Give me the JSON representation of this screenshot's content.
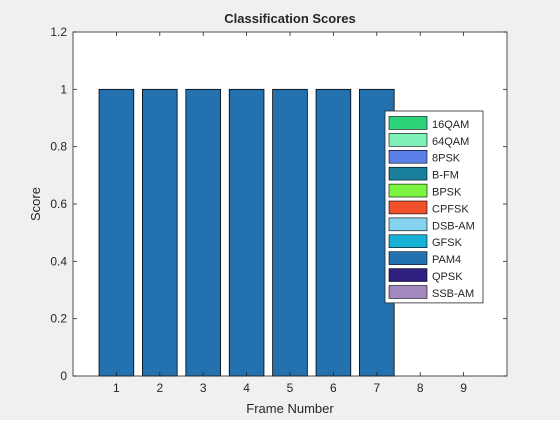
{
  "figure": {
    "background": "#f0f0f0",
    "axes_background": "#ffffff"
  },
  "chart_data": {
    "type": "bar",
    "title": "Classification Scores",
    "xlabel": "Frame Number",
    "ylabel": "Score",
    "categories": [
      "1",
      "2",
      "3",
      "4",
      "5",
      "6",
      "7",
      "8",
      "9"
    ],
    "xlim": [
      0,
      10
    ],
    "ylim": [
      0,
      1.2
    ],
    "yticks": [
      0,
      0.2,
      0.4,
      0.6,
      0.8,
      1.0
    ],
    "ytick_labels": [
      "0",
      "0.2",
      "0.4",
      "0.6",
      "0.8",
      "1",
      "1.2"
    ],
    "yticks_all": [
      0,
      0.2,
      0.4,
      0.6,
      0.8,
      1.0,
      1.2
    ],
    "stacked": true,
    "grid": false,
    "legend_position": "right-middle",
    "series": [
      {
        "name": "16QAM",
        "color": "#2ed47a",
        "values": [
          0,
          0,
          0,
          0,
          0,
          0,
          0,
          0,
          0
        ]
      },
      {
        "name": "64QAM",
        "color": "#7ef0b8",
        "values": [
          0,
          0,
          0,
          0,
          0,
          0,
          0,
          0,
          0
        ]
      },
      {
        "name": "8PSK",
        "color": "#5b7fe6",
        "values": [
          0,
          0,
          0,
          0,
          0,
          0,
          0,
          0,
          0
        ]
      },
      {
        "name": "B-FM",
        "color": "#1a7f9a",
        "values": [
          0,
          0,
          0,
          0,
          0,
          0,
          0,
          0,
          0
        ]
      },
      {
        "name": "BPSK",
        "color": "#7cf542",
        "values": [
          0,
          0,
          0,
          0,
          0,
          0,
          0,
          0,
          0
        ]
      },
      {
        "name": "CPFSK",
        "color": "#f0502a",
        "values": [
          0,
          0,
          0,
          0,
          0,
          0,
          0,
          0,
          0
        ]
      },
      {
        "name": "DSB-AM",
        "color": "#86d3f0",
        "values": [
          0,
          0,
          0,
          0,
          0,
          0,
          0,
          0,
          0
        ]
      },
      {
        "name": "GFSK",
        "color": "#17b3d6",
        "values": [
          0,
          0,
          0,
          0,
          0,
          0,
          0,
          0,
          0
        ]
      },
      {
        "name": "PAM4",
        "color": "#2471b0",
        "values": [
          1,
          1,
          1,
          1,
          1,
          1,
          1,
          0,
          0
        ]
      },
      {
        "name": "QPSK",
        "color": "#2e1f80",
        "values": [
          0,
          0,
          0,
          0,
          0,
          0,
          0,
          0,
          0
        ]
      },
      {
        "name": "SSB-AM",
        "color": "#a389bd",
        "values": [
          0,
          0,
          0,
          0,
          0,
          0,
          0,
          0,
          0
        ]
      }
    ]
  }
}
